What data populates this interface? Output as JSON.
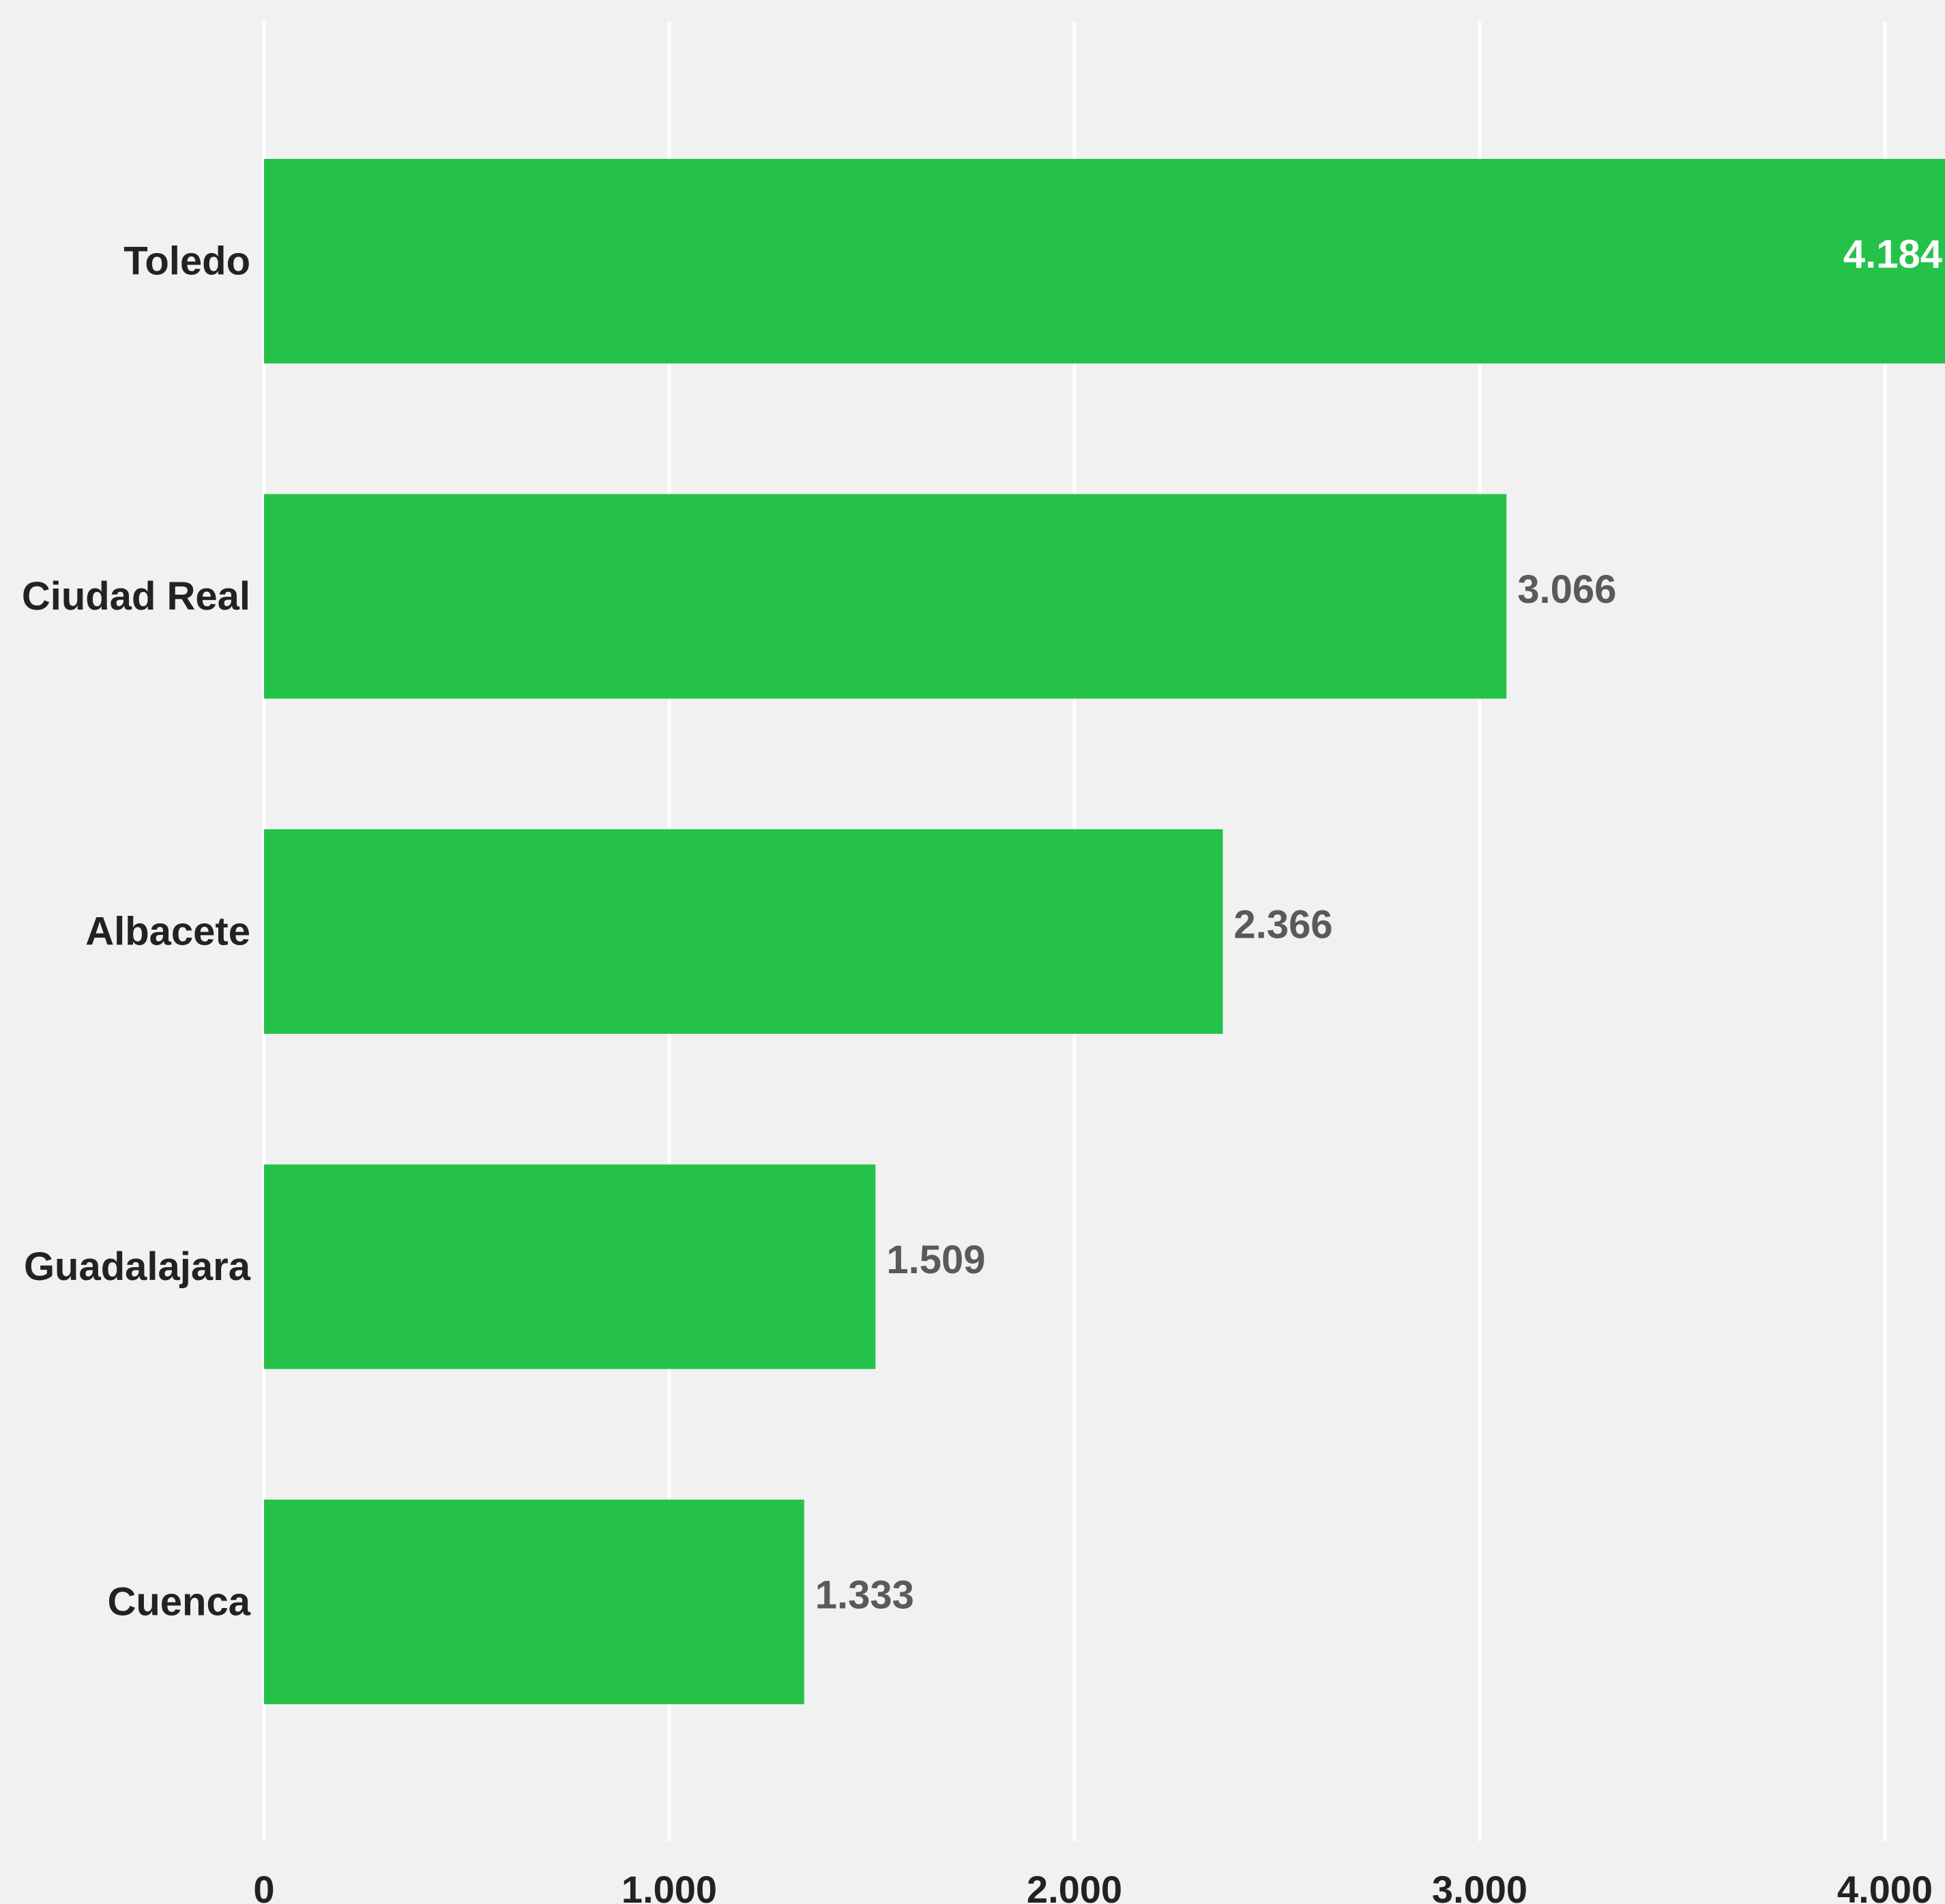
{
  "colors": {
    "background": "#f1f1f1",
    "bar": "#25c24a",
    "gridline": "#ffffff",
    "label_dark": "#222222",
    "value_outside": "#5a5a5a",
    "value_inside": "#ffffff"
  },
  "chart_data": {
    "type": "bar",
    "orientation": "horizontal",
    "categories": [
      "Toledo",
      "Ciudad Real",
      "Albacete",
      "Guadalajara",
      "Cuenca"
    ],
    "values": [
      4184,
      3066,
      2366,
      1509,
      1333
    ],
    "value_labels": [
      "4.184",
      "3.066",
      "2.366",
      "1.509",
      "1.333"
    ],
    "xlim": [
      0,
      4150
    ],
    "x_ticks": [
      0,
      1000,
      2000,
      3000,
      4000
    ],
    "x_tick_labels": [
      "0",
      "1.000",
      "2.000",
      "3.000",
      "4.000"
    ],
    "grid": true,
    "legend": "none"
  }
}
